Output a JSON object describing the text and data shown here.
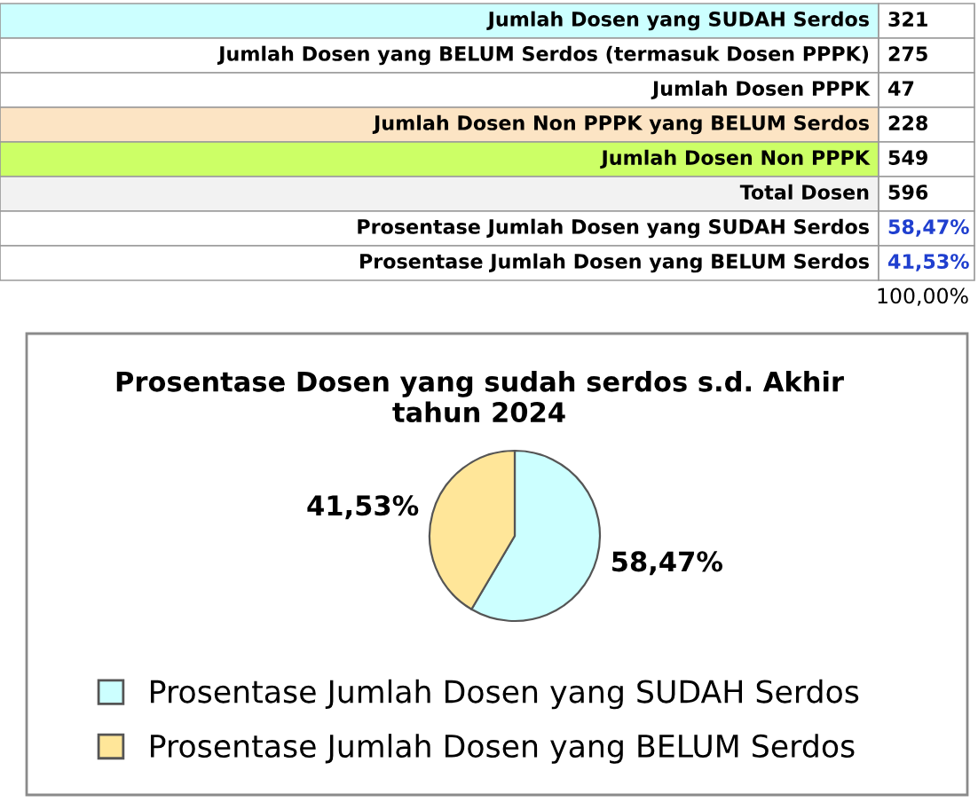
{
  "chart_data": {
    "type": "pie",
    "title": "Prosentase Dosen yang sudah serdos s.d. Akhir tahun 2024",
    "categories": [
      "Prosentase Jumlah Dosen yang SUDAH Serdos",
      "Prosentase Jumlah Dosen yang BELUM Serdos"
    ],
    "values": [
      58.47,
      41.53
    ],
    "colors": [
      "#ccffff",
      "#ffe699"
    ],
    "value_labels": [
      "58,47%",
      "41,53%"
    ],
    "legend": "bottom",
    "annotations": [
      "Jumlah Dosen yang SUDAH Serdos",
      "321",
      "Jumlah Dosen yang BELUM Serdos (termasuk Dosen PPPK)",
      "275",
      "Jumlah Dosen PPPK",
      "47",
      "Jumlah Dosen Non PPPK yang BELUM Serdos",
      "228",
      "Jumlah Dosen Non PPPK",
      "549",
      "Total Dosen",
      "596",
      "Prosentase Jumlah Dosen yang SUDAH Serdos",
      "58,47%",
      "Prosentase Jumlah Dosen yang BELUM Serdos",
      "41,53%",
      "100,00%"
    ]
  }
}
